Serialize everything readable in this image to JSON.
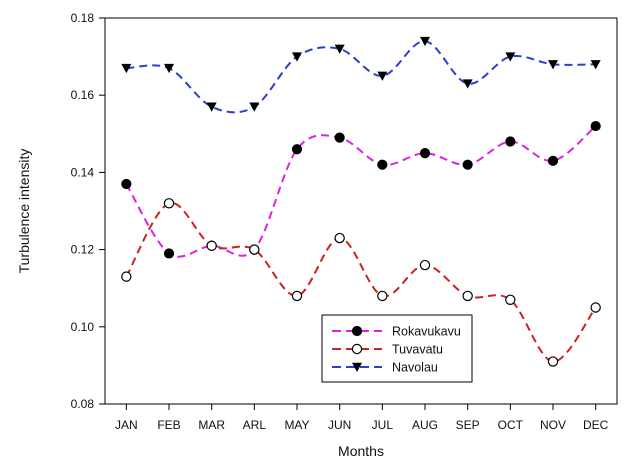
{
  "chart_data": {
    "type": "line",
    "xlabel": "Months",
    "ylabel": "Turbulence intensity",
    "categories": [
      "JAN",
      "FEB",
      "MAR",
      "ARL",
      "MAY",
      "JUN",
      "JUL",
      "AUG",
      "SEP",
      "OCT",
      "NOV",
      "DEC"
    ],
    "ylim": [
      0.08,
      0.18
    ],
    "yticks": [
      "0.08",
      "0.10",
      "0.12",
      "0.14",
      "0.16",
      "0.18"
    ],
    "grid": false,
    "legend_position": "bottom-center",
    "series": [
      {
        "name": "Rokavukavu",
        "color": "#e020e0",
        "marker": "filled-circle",
        "values": [
          0.137,
          0.119,
          0.121,
          0.12,
          0.146,
          0.149,
          0.142,
          0.145,
          0.142,
          0.148,
          0.143,
          0.152
        ]
      },
      {
        "name": "Tuvavatu",
        "color": "#cc2222",
        "marker": "open-circle",
        "values": [
          0.113,
          0.132,
          0.121,
          0.12,
          0.108,
          0.123,
          0.108,
          0.116,
          0.108,
          0.107,
          0.091,
          0.105
        ]
      },
      {
        "name": "Navolau",
        "color": "#2a3fd0",
        "marker": "filled-triangle-down",
        "values": [
          0.167,
          0.167,
          0.157,
          0.157,
          0.17,
          0.172,
          0.165,
          0.174,
          0.163,
          0.17,
          0.168,
          0.168
        ]
      }
    ]
  }
}
